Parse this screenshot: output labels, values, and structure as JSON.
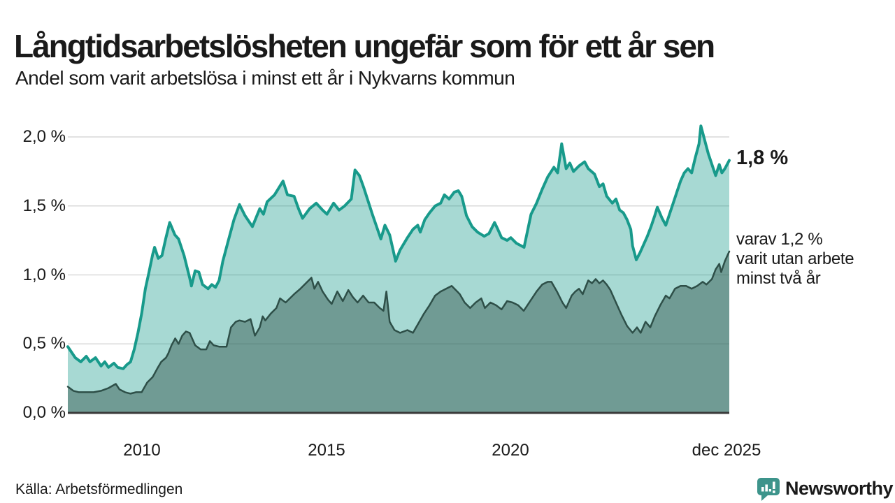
{
  "header": {
    "title": "Långtidsarbetslösheten ungefär som för ett år sen",
    "subtitle": "Andel som varit arbetslösa i minst ett år i Nykvarns kommun"
  },
  "annotations": {
    "latest_primary": "1,8 %",
    "secondary_lines": {
      "line1": "varav 1,2 %",
      "line2": "varit utan arbete",
      "line3": "minst två år"
    }
  },
  "footer": {
    "source": "Källa: Arbetsförmedlingen",
    "brand_name": "Newsworthy",
    "brand_color": "#3d948b",
    "brand_icon": "bar-chart-speech-bubble-icon"
  },
  "chart_data": {
    "type": "area",
    "title": "Långtidsarbetslösheten ungefär som för ett år sen",
    "subtitle": "Andel som varit arbetslösa i minst ett år i Nykvarns kommun",
    "unit": "%",
    "grid": true,
    "grid_color": "#d9d9d9",
    "axis_color": "#3a3a3a",
    "x_domain": [
      2008.0,
      2025.92
    ],
    "ylim": [
      0,
      2.13
    ],
    "y_ticks": [
      {
        "label": "2,0 %",
        "value": 2.0
      },
      {
        "label": "1,5 %",
        "value": 1.5
      },
      {
        "label": "1,0 %",
        "value": 1.0
      },
      {
        "label": "0,5 %",
        "value": 0.5
      },
      {
        "label": "0,0 %",
        "value": 0.0
      }
    ],
    "x_ticks": [
      {
        "label": "2010",
        "value": 2010
      },
      {
        "label": "2015",
        "value": 2015
      },
      {
        "label": "2020",
        "value": 2020
      },
      {
        "label": "dec 2025",
        "value": 2025.85
      }
    ],
    "series": [
      {
        "name": "Andel arbetslösa minst ett år",
        "color": "#189a8b",
        "fill": "rgba(24,154,139,0.38)",
        "width": 4,
        "latest_label": "1,8 %",
        "points": [
          [
            2008.0,
            0.48
          ],
          [
            2008.1,
            0.44
          ],
          [
            2008.2,
            0.4
          ],
          [
            2008.35,
            0.37
          ],
          [
            2008.5,
            0.41
          ],
          [
            2008.6,
            0.37
          ],
          [
            2008.75,
            0.4
          ],
          [
            2008.9,
            0.34
          ],
          [
            2009.0,
            0.37
          ],
          [
            2009.1,
            0.33
          ],
          [
            2009.25,
            0.36
          ],
          [
            2009.35,
            0.33
          ],
          [
            2009.5,
            0.32
          ],
          [
            2009.6,
            0.35
          ],
          [
            2009.7,
            0.37
          ],
          [
            2009.8,
            0.46
          ],
          [
            2009.9,
            0.58
          ],
          [
            2010.0,
            0.72
          ],
          [
            2010.1,
            0.9
          ],
          [
            2010.2,
            1.02
          ],
          [
            2010.3,
            1.15
          ],
          [
            2010.35,
            1.2
          ],
          [
            2010.45,
            1.12
          ],
          [
            2010.55,
            1.14
          ],
          [
            2010.65,
            1.26
          ],
          [
            2010.76,
            1.38
          ],
          [
            2010.9,
            1.29
          ],
          [
            2011.0,
            1.26
          ],
          [
            2011.15,
            1.14
          ],
          [
            2011.3,
            0.98
          ],
          [
            2011.35,
            0.92
          ],
          [
            2011.45,
            1.03
          ],
          [
            2011.55,
            1.02
          ],
          [
            2011.65,
            0.93
          ],
          [
            2011.8,
            0.9
          ],
          [
            2011.9,
            0.93
          ],
          [
            2012.0,
            0.91
          ],
          [
            2012.1,
            0.96
          ],
          [
            2012.2,
            1.1
          ],
          [
            2012.35,
            1.25
          ],
          [
            2012.5,
            1.4
          ],
          [
            2012.65,
            1.51
          ],
          [
            2012.8,
            1.43
          ],
          [
            2013.0,
            1.35
          ],
          [
            2013.2,
            1.48
          ],
          [
            2013.3,
            1.44
          ],
          [
            2013.4,
            1.53
          ],
          [
            2013.6,
            1.58
          ],
          [
            2013.83,
            1.68
          ],
          [
            2013.95,
            1.58
          ],
          [
            2014.13,
            1.57
          ],
          [
            2014.25,
            1.48
          ],
          [
            2014.36,
            1.41
          ],
          [
            2014.55,
            1.48
          ],
          [
            2014.73,
            1.52
          ],
          [
            2014.9,
            1.47
          ],
          [
            2015.02,
            1.44
          ],
          [
            2015.2,
            1.52
          ],
          [
            2015.35,
            1.47
          ],
          [
            2015.5,
            1.5
          ],
          [
            2015.68,
            1.55
          ],
          [
            2015.78,
            1.76
          ],
          [
            2015.9,
            1.72
          ],
          [
            2016.02,
            1.63
          ],
          [
            2016.25,
            1.44
          ],
          [
            2016.48,
            1.26
          ],
          [
            2016.59,
            1.36
          ],
          [
            2016.72,
            1.29
          ],
          [
            2016.88,
            1.1
          ],
          [
            2017.0,
            1.18
          ],
          [
            2017.2,
            1.27
          ],
          [
            2017.35,
            1.33
          ],
          [
            2017.48,
            1.36
          ],
          [
            2017.55,
            1.31
          ],
          [
            2017.67,
            1.4
          ],
          [
            2017.8,
            1.45
          ],
          [
            2017.95,
            1.5
          ],
          [
            2018.1,
            1.52
          ],
          [
            2018.2,
            1.58
          ],
          [
            2018.33,
            1.55
          ],
          [
            2018.47,
            1.6
          ],
          [
            2018.58,
            1.61
          ],
          [
            2018.67,
            1.57
          ],
          [
            2018.8,
            1.43
          ],
          [
            2018.95,
            1.35
          ],
          [
            2019.1,
            1.31
          ],
          [
            2019.28,
            1.28
          ],
          [
            2019.41,
            1.3
          ],
          [
            2019.56,
            1.38
          ],
          [
            2019.65,
            1.33
          ],
          [
            2019.75,
            1.27
          ],
          [
            2019.9,
            1.25
          ],
          [
            2020.0,
            1.27
          ],
          [
            2020.15,
            1.23
          ],
          [
            2020.36,
            1.2
          ],
          [
            2020.55,
            1.44
          ],
          [
            2020.7,
            1.52
          ],
          [
            2020.85,
            1.62
          ],
          [
            2021.0,
            1.71
          ],
          [
            2021.17,
            1.78
          ],
          [
            2021.27,
            1.74
          ],
          [
            2021.38,
            1.95
          ],
          [
            2021.5,
            1.77
          ],
          [
            2021.6,
            1.81
          ],
          [
            2021.7,
            1.75
          ],
          [
            2021.85,
            1.79
          ],
          [
            2022.0,
            1.82
          ],
          [
            2022.1,
            1.77
          ],
          [
            2022.27,
            1.73
          ],
          [
            2022.4,
            1.64
          ],
          [
            2022.5,
            1.66
          ],
          [
            2022.6,
            1.57
          ],
          [
            2022.75,
            1.52
          ],
          [
            2022.85,
            1.55
          ],
          [
            2022.95,
            1.47
          ],
          [
            2023.05,
            1.45
          ],
          [
            2023.15,
            1.4
          ],
          [
            2023.25,
            1.33
          ],
          [
            2023.3,
            1.21
          ],
          [
            2023.4,
            1.11
          ],
          [
            2023.5,
            1.16
          ],
          [
            2023.6,
            1.22
          ],
          [
            2023.7,
            1.28
          ],
          [
            2023.8,
            1.35
          ],
          [
            2023.9,
            1.43
          ],
          [
            2023.97,
            1.49
          ],
          [
            2024.1,
            1.41
          ],
          [
            2024.2,
            1.36
          ],
          [
            2024.3,
            1.44
          ],
          [
            2024.4,
            1.52
          ],
          [
            2024.5,
            1.6
          ],
          [
            2024.6,
            1.68
          ],
          [
            2024.7,
            1.74
          ],
          [
            2024.8,
            1.77
          ],
          [
            2024.9,
            1.74
          ],
          [
            2025.0,
            1.85
          ],
          [
            2025.1,
            1.95
          ],
          [
            2025.15,
            2.08
          ],
          [
            2025.25,
            1.98
          ],
          [
            2025.35,
            1.88
          ],
          [
            2025.45,
            1.8
          ],
          [
            2025.55,
            1.72
          ],
          [
            2025.65,
            1.8
          ],
          [
            2025.72,
            1.74
          ],
          [
            2025.8,
            1.77
          ],
          [
            2025.92,
            1.83
          ]
        ]
      },
      {
        "name": "varav utan arbete minst två år",
        "color": "#2e4f48",
        "fill": "rgba(46,79,72,0.45)",
        "width": 2.5,
        "latest_label": "varav 1,2 %",
        "points": [
          [
            2008.0,
            0.19
          ],
          [
            2008.15,
            0.16
          ],
          [
            2008.3,
            0.15
          ],
          [
            2008.5,
            0.15
          ],
          [
            2008.7,
            0.15
          ],
          [
            2008.9,
            0.16
          ],
          [
            2009.1,
            0.18
          ],
          [
            2009.3,
            0.21
          ],
          [
            2009.4,
            0.17
          ],
          [
            2009.55,
            0.15
          ],
          [
            2009.7,
            0.14
          ],
          [
            2009.85,
            0.15
          ],
          [
            2010.0,
            0.15
          ],
          [
            2010.15,
            0.22
          ],
          [
            2010.3,
            0.26
          ],
          [
            2010.42,
            0.32
          ],
          [
            2010.53,
            0.37
          ],
          [
            2010.66,
            0.4
          ],
          [
            2010.72,
            0.43
          ],
          [
            2010.81,
            0.49
          ],
          [
            2010.91,
            0.54
          ],
          [
            2011.0,
            0.5
          ],
          [
            2011.1,
            0.56
          ],
          [
            2011.2,
            0.59
          ],
          [
            2011.3,
            0.58
          ],
          [
            2011.45,
            0.49
          ],
          [
            2011.6,
            0.46
          ],
          [
            2011.75,
            0.46
          ],
          [
            2011.85,
            0.52
          ],
          [
            2011.95,
            0.49
          ],
          [
            2012.1,
            0.48
          ],
          [
            2012.3,
            0.48
          ],
          [
            2012.42,
            0.62
          ],
          [
            2012.55,
            0.66
          ],
          [
            2012.65,
            0.67
          ],
          [
            2012.8,
            0.66
          ],
          [
            2012.95,
            0.68
          ],
          [
            2013.07,
            0.56
          ],
          [
            2013.2,
            0.62
          ],
          [
            2013.28,
            0.7
          ],
          [
            2013.35,
            0.67
          ],
          [
            2013.5,
            0.72
          ],
          [
            2013.65,
            0.76
          ],
          [
            2013.75,
            0.83
          ],
          [
            2013.9,
            0.8
          ],
          [
            2014.13,
            0.86
          ],
          [
            2014.3,
            0.9
          ],
          [
            2014.45,
            0.94
          ],
          [
            2014.6,
            0.98
          ],
          [
            2014.68,
            0.9
          ],
          [
            2014.78,
            0.95
          ],
          [
            2014.9,
            0.88
          ],
          [
            2015.05,
            0.82
          ],
          [
            2015.15,
            0.79
          ],
          [
            2015.3,
            0.88
          ],
          [
            2015.45,
            0.81
          ],
          [
            2015.6,
            0.89
          ],
          [
            2015.72,
            0.84
          ],
          [
            2015.85,
            0.8
          ],
          [
            2016.0,
            0.85
          ],
          [
            2016.15,
            0.8
          ],
          [
            2016.3,
            0.8
          ],
          [
            2016.45,
            0.76
          ],
          [
            2016.55,
            0.74
          ],
          [
            2016.63,
            0.88
          ],
          [
            2016.72,
            0.66
          ],
          [
            2016.85,
            0.6
          ],
          [
            2017.0,
            0.58
          ],
          [
            2017.2,
            0.6
          ],
          [
            2017.35,
            0.58
          ],
          [
            2017.5,
            0.65
          ],
          [
            2017.65,
            0.72
          ],
          [
            2017.8,
            0.78
          ],
          [
            2017.95,
            0.85
          ],
          [
            2018.1,
            0.88
          ],
          [
            2018.25,
            0.9
          ],
          [
            2018.4,
            0.92
          ],
          [
            2018.55,
            0.88
          ],
          [
            2018.62,
            0.86
          ],
          [
            2018.75,
            0.8
          ],
          [
            2018.9,
            0.76
          ],
          [
            2019.05,
            0.8
          ],
          [
            2019.2,
            0.83
          ],
          [
            2019.3,
            0.76
          ],
          [
            2019.45,
            0.8
          ],
          [
            2019.6,
            0.78
          ],
          [
            2019.75,
            0.75
          ],
          [
            2019.9,
            0.81
          ],
          [
            2020.05,
            0.8
          ],
          [
            2020.2,
            0.78
          ],
          [
            2020.35,
            0.74
          ],
          [
            2020.55,
            0.82
          ],
          [
            2020.7,
            0.88
          ],
          [
            2020.85,
            0.93
          ],
          [
            2021.0,
            0.95
          ],
          [
            2021.1,
            0.95
          ],
          [
            2021.25,
            0.88
          ],
          [
            2021.4,
            0.8
          ],
          [
            2021.5,
            0.76
          ],
          [
            2021.65,
            0.85
          ],
          [
            2021.75,
            0.88
          ],
          [
            2021.85,
            0.9
          ],
          [
            2021.95,
            0.86
          ],
          [
            2022.1,
            0.96
          ],
          [
            2022.2,
            0.94
          ],
          [
            2022.3,
            0.97
          ],
          [
            2022.4,
            0.94
          ],
          [
            2022.5,
            0.96
          ],
          [
            2022.6,
            0.93
          ],
          [
            2022.7,
            0.89
          ],
          [
            2022.85,
            0.8
          ],
          [
            2023.0,
            0.71
          ],
          [
            2023.15,
            0.63
          ],
          [
            2023.3,
            0.58
          ],
          [
            2023.42,
            0.62
          ],
          [
            2023.52,
            0.58
          ],
          [
            2023.65,
            0.66
          ],
          [
            2023.78,
            0.62
          ],
          [
            2023.9,
            0.7
          ],
          [
            2024.05,
            0.78
          ],
          [
            2024.2,
            0.85
          ],
          [
            2024.3,
            0.83
          ],
          [
            2024.45,
            0.9
          ],
          [
            2024.6,
            0.92
          ],
          [
            2024.75,
            0.92
          ],
          [
            2024.9,
            0.9
          ],
          [
            2025.05,
            0.92
          ],
          [
            2025.2,
            0.95
          ],
          [
            2025.3,
            0.93
          ],
          [
            2025.45,
            0.97
          ],
          [
            2025.55,
            1.04
          ],
          [
            2025.65,
            1.08
          ],
          [
            2025.7,
            1.02
          ],
          [
            2025.8,
            1.1
          ],
          [
            2025.92,
            1.17
          ]
        ]
      }
    ]
  }
}
